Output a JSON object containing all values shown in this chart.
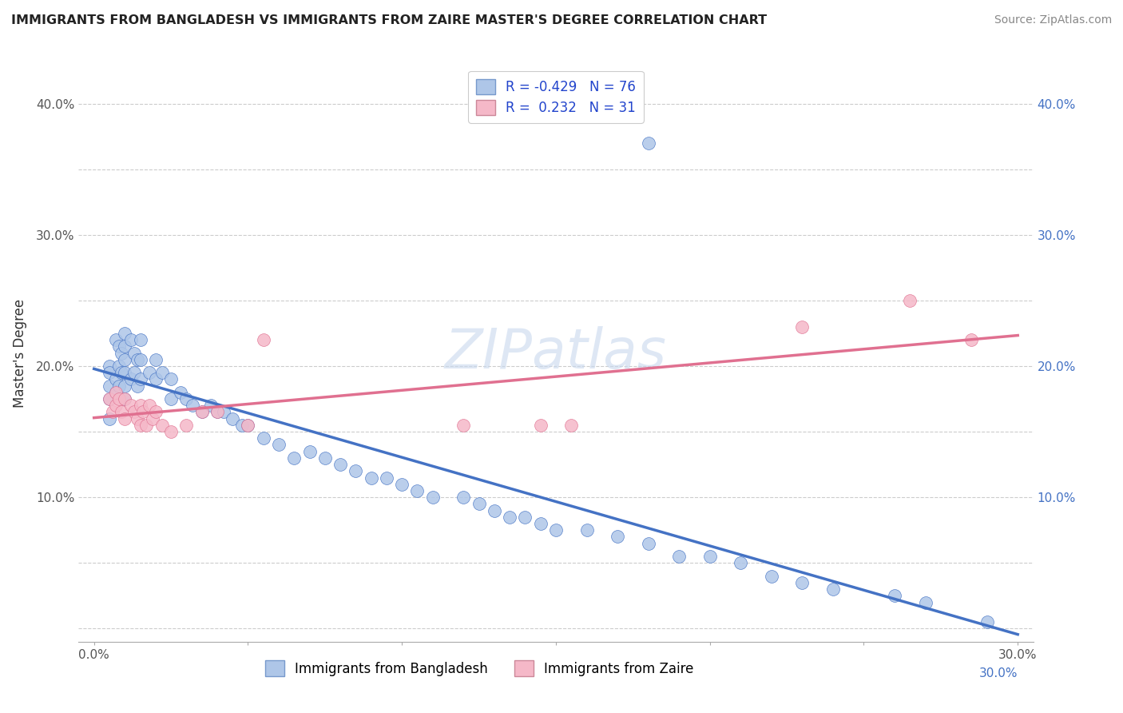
{
  "title": "IMMIGRANTS FROM BANGLADESH VS IMMIGRANTS FROM ZAIRE MASTER'S DEGREE CORRELATION CHART",
  "source": "Source: ZipAtlas.com",
  "ylabel": "Master's Degree",
  "watermark": "ZIPatlas",
  "r_bangladesh": -0.429,
  "n_bangladesh": 76,
  "r_zaire": 0.232,
  "n_zaire": 31,
  "color_bangladesh": "#aec6e8",
  "color_zaire": "#f5b8c8",
  "line_color_bangladesh": "#4472c4",
  "line_color_zaire": "#e07090",
  "xlim": [
    -0.005,
    0.305
  ],
  "ylim": [
    -0.01,
    0.43
  ],
  "bangladesh_x": [
    0.005,
    0.005,
    0.005,
    0.005,
    0.005,
    0.007,
    0.007,
    0.007,
    0.008,
    0.008,
    0.008,
    0.009,
    0.009,
    0.01,
    0.01,
    0.01,
    0.01,
    0.01,
    0.01,
    0.012,
    0.012,
    0.013,
    0.013,
    0.014,
    0.014,
    0.015,
    0.015,
    0.015,
    0.018,
    0.02,
    0.02,
    0.022,
    0.025,
    0.025,
    0.028,
    0.03,
    0.032,
    0.035,
    0.038,
    0.04,
    0.042,
    0.045,
    0.048,
    0.05,
    0.055,
    0.06,
    0.065,
    0.07,
    0.075,
    0.08,
    0.085,
    0.09,
    0.095,
    0.1,
    0.105,
    0.11,
    0.12,
    0.125,
    0.13,
    0.135,
    0.14,
    0.145,
    0.15,
    0.16,
    0.17,
    0.18,
    0.19,
    0.2,
    0.21,
    0.22,
    0.23,
    0.24,
    0.26,
    0.27,
    0.29,
    0.18
  ],
  "bangladesh_y": [
    0.2,
    0.195,
    0.185,
    0.175,
    0.16,
    0.22,
    0.19,
    0.18,
    0.215,
    0.2,
    0.185,
    0.21,
    0.195,
    0.225,
    0.215,
    0.205,
    0.195,
    0.185,
    0.175,
    0.22,
    0.19,
    0.21,
    0.195,
    0.205,
    0.185,
    0.22,
    0.205,
    0.19,
    0.195,
    0.205,
    0.19,
    0.195,
    0.19,
    0.175,
    0.18,
    0.175,
    0.17,
    0.165,
    0.17,
    0.165,
    0.165,
    0.16,
    0.155,
    0.155,
    0.145,
    0.14,
    0.13,
    0.135,
    0.13,
    0.125,
    0.12,
    0.115,
    0.115,
    0.11,
    0.105,
    0.1,
    0.1,
    0.095,
    0.09,
    0.085,
    0.085,
    0.08,
    0.075,
    0.075,
    0.07,
    0.065,
    0.055,
    0.055,
    0.05,
    0.04,
    0.035,
    0.03,
    0.025,
    0.02,
    0.005,
    0.37
  ],
  "zaire_x": [
    0.005,
    0.006,
    0.007,
    0.007,
    0.008,
    0.009,
    0.01,
    0.01,
    0.012,
    0.013,
    0.014,
    0.015,
    0.015,
    0.016,
    0.017,
    0.018,
    0.019,
    0.02,
    0.022,
    0.025,
    0.03,
    0.035,
    0.04,
    0.05,
    0.055,
    0.12,
    0.145,
    0.155,
    0.23,
    0.265,
    0.285
  ],
  "zaire_y": [
    0.175,
    0.165,
    0.18,
    0.17,
    0.175,
    0.165,
    0.175,
    0.16,
    0.17,
    0.165,
    0.16,
    0.17,
    0.155,
    0.165,
    0.155,
    0.17,
    0.16,
    0.165,
    0.155,
    0.15,
    0.155,
    0.165,
    0.165,
    0.155,
    0.22,
    0.155,
    0.155,
    0.155,
    0.23,
    0.25,
    0.22
  ]
}
